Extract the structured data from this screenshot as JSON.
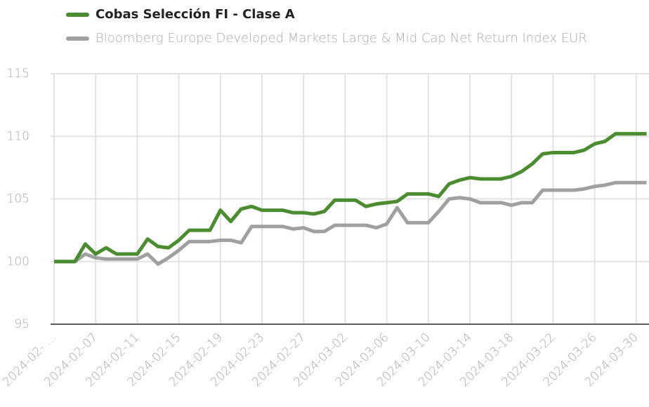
{
  "chart_data": {
    "type": "line",
    "x": [
      "2024-02-03",
      "2024-02-04",
      "2024-02-05",
      "2024-02-06",
      "2024-02-07",
      "2024-02-08",
      "2024-02-09",
      "2024-02-10",
      "2024-02-11",
      "2024-02-12",
      "2024-02-13",
      "2024-02-14",
      "2024-02-15",
      "2024-02-16",
      "2024-02-17",
      "2024-02-18",
      "2024-02-19",
      "2024-02-20",
      "2024-02-21",
      "2024-02-22",
      "2024-02-23",
      "2024-02-24",
      "2024-02-25",
      "2024-02-26",
      "2024-02-27",
      "2024-02-28",
      "2024-02-29",
      "2024-03-01",
      "2024-03-02",
      "2024-03-03",
      "2024-03-04",
      "2024-03-05",
      "2024-03-06",
      "2024-03-07",
      "2024-03-08",
      "2024-03-09",
      "2024-03-10",
      "2024-03-11",
      "2024-03-12",
      "2024-03-13",
      "2024-03-14",
      "2024-03-15",
      "2024-03-16",
      "2024-03-17",
      "2024-03-18",
      "2024-03-19",
      "2024-03-20",
      "2024-03-21",
      "2024-03-22",
      "2024-03-23",
      "2024-03-24",
      "2024-03-25",
      "2024-03-26",
      "2024-03-27",
      "2024-03-28",
      "2024-03-29",
      "2024-03-30",
      "2024-03-31"
    ],
    "series": [
      {
        "name": "Cobas Selección FI - Clase A",
        "color": "#4a8c2f",
        "values": [
          100,
          100,
          100,
          101.4,
          100.6,
          101.1,
          100.6,
          100.6,
          100.6,
          101.8,
          101.2,
          101.1,
          101.7,
          102.5,
          102.5,
          102.5,
          104.1,
          103.2,
          104.2,
          104.4,
          104.1,
          104.1,
          104.1,
          103.9,
          103.9,
          103.8,
          104.0,
          104.9,
          104.9,
          104.9,
          104.4,
          104.6,
          104.7,
          104.8,
          105.4,
          105.4,
          105.4,
          105.2,
          106.2,
          106.5,
          106.7,
          106.6,
          106.6,
          106.6,
          106.8,
          107.2,
          107.8,
          108.6,
          108.7,
          108.7,
          108.7,
          108.9,
          109.4,
          109.6,
          110.2,
          110.2,
          110.2,
          110.2
        ]
      },
      {
        "name": "Bloomberg Europe Developed Markets Large & Mid Cap Net Return Index EUR",
        "color": "#a0a0a0",
        "values": [
          100,
          100,
          100,
          100.6,
          100.3,
          100.2,
          100.2,
          100.2,
          100.2,
          100.6,
          99.8,
          100.3,
          100.9,
          101.6,
          101.6,
          101.6,
          101.7,
          101.7,
          101.5,
          102.8,
          102.8,
          102.8,
          102.8,
          102.6,
          102.7,
          102.4,
          102.4,
          102.9,
          102.9,
          102.9,
          102.9,
          102.7,
          103.0,
          104.3,
          103.1,
          103.1,
          103.1,
          104.0,
          105.0,
          105.1,
          105.0,
          104.7,
          104.7,
          104.7,
          104.5,
          104.7,
          104.7,
          105.7,
          105.7,
          105.7,
          105.7,
          105.8,
          106.0,
          106.1,
          106.3,
          106.3,
          106.3,
          106.3
        ]
      }
    ],
    "xticks": [
      {
        "value": "2024-02-03",
        "label": "2024-02- ..."
      },
      "2024-02-07",
      "2024-02-11",
      "2024-02-15",
      "2024-02-19",
      "2024-02-23",
      "2024-02-27",
      "2024-03-02",
      "2024-03-06",
      "2024-03-10",
      "2024-03-14",
      "2024-03-18",
      "2024-03-22",
      "2024-03-26",
      "2024-03-30"
    ],
    "ylim": [
      95,
      115
    ],
    "yticks": [
      95,
      100,
      105,
      110,
      115
    ],
    "grid": true
  }
}
